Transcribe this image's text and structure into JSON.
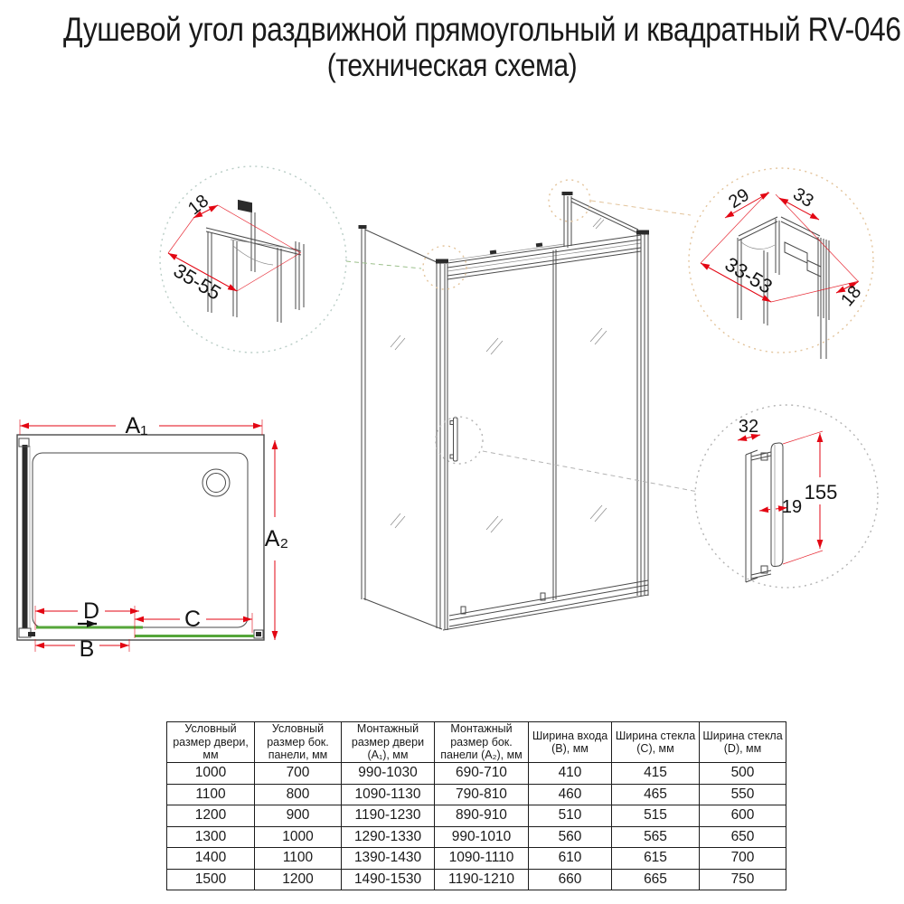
{
  "title": {
    "line1": "Душевой угол раздвижной прямоугольный и квадратный RV-046",
    "line2": "(техническая схема)"
  },
  "colors": {
    "dimension_red": "#e30613",
    "glass_green": "#55a63a",
    "drawing_line": "#4a4a4a",
    "detail_circle_left": "#b9cdc6",
    "detail_circle_right": "#e3c49c",
    "detail_circle_handle": "#b3b3b3"
  },
  "detail_top_left": {
    "dim_top": "18",
    "dim_range": "35-55"
  },
  "detail_top_right": {
    "dim_1": "29",
    "dim_2": "33",
    "dim_range": "33-53",
    "dim_4": "18"
  },
  "detail_handle": {
    "dim_width": "32",
    "dim_height": "155",
    "dim_depth": "19"
  },
  "plan": {
    "a1": "A₁",
    "a2": "A₂",
    "b": "B",
    "c": "C",
    "d": "D"
  },
  "table": {
    "headers": [
      "Условный размер двери, мм",
      "Условный размер бок. панели, мм",
      "Монтажный размер двери (А₁), мм",
      "Монтажный размер бок. панели (А₂), мм",
      "Ширина входа (В), мм",
      "Ширина стекла (С), мм",
      "Ширина стекла (D), мм"
    ],
    "rows": [
      [
        "1000",
        "700",
        "990-1030",
        "690-710",
        "410",
        "415",
        "500"
      ],
      [
        "1100",
        "800",
        "1090-1130",
        "790-810",
        "460",
        "465",
        "550"
      ],
      [
        "1200",
        "900",
        "1190-1230",
        "890-910",
        "510",
        "515",
        "600"
      ],
      [
        "1300",
        "1000",
        "1290-1330",
        "990-1010",
        "560",
        "565",
        "650"
      ],
      [
        "1400",
        "1100",
        "1390-1430",
        "1090-1110",
        "610",
        "615",
        "700"
      ],
      [
        "1500",
        "1200",
        "1490-1530",
        "1190-1210",
        "660",
        "665",
        "750"
      ]
    ]
  }
}
